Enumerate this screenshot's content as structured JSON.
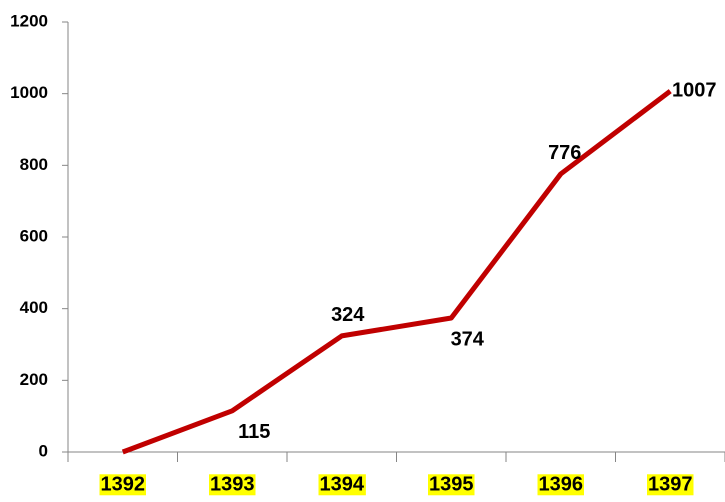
{
  "chart_data": {
    "type": "line",
    "categories": [
      "1392",
      "1393",
      "1394",
      "1395",
      "1396",
      "1397"
    ],
    "series": [
      {
        "name": null,
        "color": "#c00000",
        "values": [
          0,
          115,
          324,
          374,
          776,
          1007
        ]
      }
    ],
    "value_labels": [
      null,
      "115",
      "324",
      "374",
      "776",
      "1007"
    ],
    "category_highlight": "#ffff00",
    "ylim": [
      0,
      1200
    ],
    "yticks": [
      0,
      200,
      400,
      600,
      800,
      1000,
      1200
    ],
    "grid": false
  }
}
